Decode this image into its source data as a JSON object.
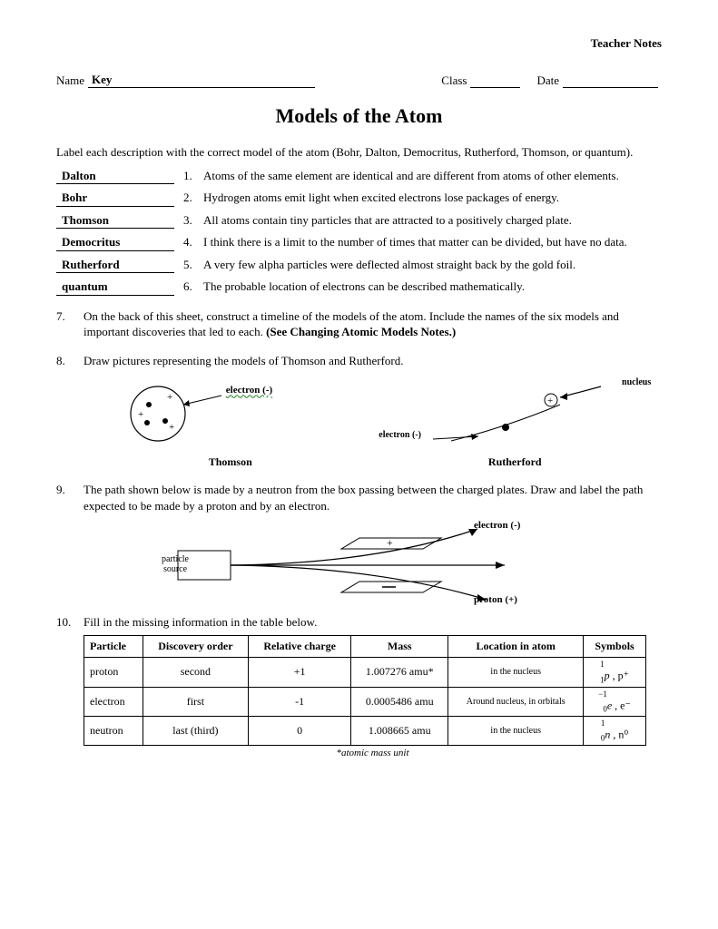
{
  "header": {
    "teacher_notes": "Teacher Notes",
    "name_label": "Name",
    "name_value": "Key",
    "class_label": "Class",
    "date_label": "Date"
  },
  "title": "Models of the Atom",
  "instructions": "Label each description with the correct model of the atom (Bohr, Dalton, Democritus, Rutherford, Thomson, or quantum).",
  "items": [
    {
      "answer": "Dalton",
      "num": "1.",
      "text": "Atoms of the same element are identical and are different from atoms of other elements."
    },
    {
      "answer": "Bohr",
      "num": "2.",
      "text": "Hydrogen atoms emit light when excited electrons lose packages of energy."
    },
    {
      "answer": "Thomson",
      "num": "3.",
      "text": "All atoms contain tiny particles that are attracted to a positively charged plate."
    },
    {
      "answer": "Democritus",
      "num": "4.",
      "text": "I think there is a limit to the number of times that matter can be divided, but have no data."
    },
    {
      "answer": "Rutherford",
      "num": "5.",
      "text": "A very few alpha particles were deflected almost straight back by the gold foil."
    },
    {
      "answer": "quantum",
      "num": "6.",
      "text": "The probable location of electrons can be described mathematically."
    }
  ],
  "q7": {
    "num": "7.",
    "text": "On the back of this sheet, construct a timeline of the models of the atom.  Include the names of the six models and important discoveries that led to each.  ",
    "bold": "(See Changing Atomic Models Notes.)"
  },
  "q8": {
    "num": "8.",
    "text": "Draw pictures representing the models of Thomson and Rutherford.",
    "thomson_label": "Thomson",
    "rutherford_label": "Rutherford",
    "electron_label": "electron (-)",
    "nucleus_label": "nucleus",
    "electron_label2": "electron (-)"
  },
  "q9": {
    "num": "9.",
    "text": "The path shown below is made by a neutron from the box passing between the charged plates.  Draw and label the path expected to be made by a proton and by an electron.",
    "particle_source": "particle\nsource",
    "electron_label": "electron (-)",
    "proton_label": "proton (+)"
  },
  "q10": {
    "num": "10.",
    "text": "Fill in the missing information in the table below.",
    "columns": [
      "Particle",
      "Discovery order",
      "Relative charge",
      "Mass",
      "Location in atom",
      "Symbols"
    ],
    "rows": [
      {
        "particle": "proton",
        "order": "second",
        "charge": "+1",
        "mass": "1.007276 amu*",
        "location": "in the nucleus",
        "symbol_main": "p",
        "symbol_sup": "1",
        "symbol_sub": "1",
        "symbol_alt": ", p⁺"
      },
      {
        "particle": "electron",
        "order": "first",
        "charge": "-1",
        "mass": "0.0005486 amu",
        "location": "Around nucleus, in orbitals",
        "symbol_main": "e",
        "symbol_sup": "−1",
        "symbol_sub": "0",
        "symbol_alt": ", e⁻"
      },
      {
        "particle": "neutron",
        "order": "last (third)",
        "charge": "0",
        "mass": "1.008665 amu",
        "location": "in the nucleus",
        "symbol_main": "n",
        "symbol_sup": "1",
        "symbol_sub": "0",
        "symbol_alt": ", n⁰"
      }
    ],
    "footnote": "*atomic mass unit"
  }
}
